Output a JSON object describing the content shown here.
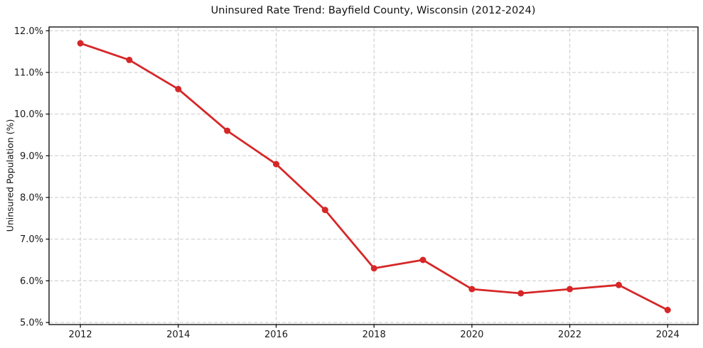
{
  "chart_data": {
    "type": "line",
    "title": "Uninsured Rate Trend: Bayfield County, Wisconsin (2012-2024)",
    "xlabel": "",
    "ylabel": "Uninsured Population (%)",
    "x": [
      2012,
      2013,
      2014,
      2015,
      2016,
      2017,
      2018,
      2019,
      2020,
      2021,
      2022,
      2023,
      2024
    ],
    "series": [
      {
        "values": [
          11.7,
          11.3,
          10.6,
          9.6,
          8.8,
          7.7,
          6.3,
          6.5,
          5.8,
          5.7,
          5.8,
          5.9,
          5.3
        ],
        "color": "#d62728",
        "marker": "circle"
      }
    ],
    "xtick_values": [
      2012,
      2014,
      2016,
      2018,
      2020,
      2022,
      2024
    ],
    "xtick_labels": [
      "2012",
      "2014",
      "2016",
      "2018",
      "2020",
      "2022",
      "2024"
    ],
    "ytick_values": [
      5,
      6,
      7,
      8,
      9,
      10,
      11,
      12
    ],
    "ytick_labels": [
      "5.0%",
      "6.0%",
      "7.0%",
      "8.0%",
      "9.0%",
      "10.0%",
      "11.0%",
      "12.0%"
    ],
    "xlim": [
      2011.36,
      2024.62
    ],
    "ylim": [
      4.95,
      12.09
    ],
    "grid": true,
    "grid_color": "#c9c9c9",
    "axis_color": "#000000",
    "text_color": "#1a1a1a",
    "background": "#ffffff",
    "legend": "none"
  }
}
